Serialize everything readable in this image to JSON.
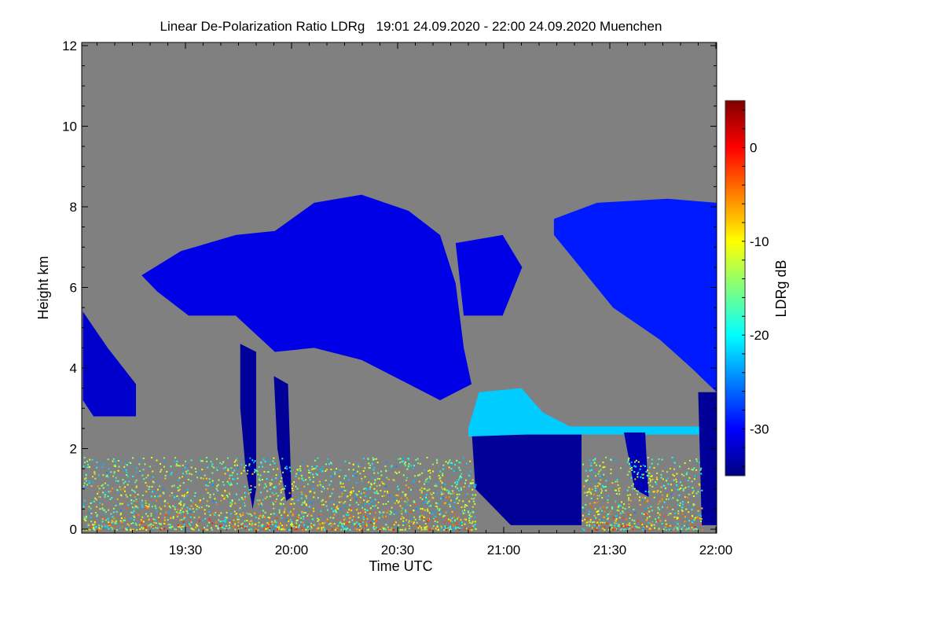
{
  "chart_data": {
    "type": "heatmap",
    "title": "Linear De-Polarization Ratio LDRg   19:01 24.09.2020 - 22:00 24.09.2020 Muenchen",
    "xlabel": "Time UTC",
    "ylabel": "Height km",
    "colorbar_label": "LDRg dB",
    "x_unit": "minutes after 19:00 UTC",
    "xlim": [
      1,
      180
    ],
    "ylim": [
      0,
      12
    ],
    "x_ticks": [
      {
        "v": 30,
        "label": "19:30"
      },
      {
        "v": 60,
        "label": "20:00"
      },
      {
        "v": 90,
        "label": "20:30"
      },
      {
        "v": 120,
        "label": "21:00"
      },
      {
        "v": 150,
        "label": "21:30"
      },
      {
        "v": 180,
        "label": "22:00"
      }
    ],
    "y_ticks": [
      {
        "v": 0,
        "label": "0"
      },
      {
        "v": 2,
        "label": "2"
      },
      {
        "v": 4,
        "label": "4"
      },
      {
        "v": 6,
        "label": "6"
      },
      {
        "v": 8,
        "label": "8"
      },
      {
        "v": 10,
        "label": "10"
      },
      {
        "v": 12,
        "label": "12"
      }
    ],
    "colorbar_range": [
      -35,
      5
    ],
    "colorbar_ticks": [
      {
        "v": 0,
        "label": "0"
      },
      {
        "v": -10,
        "label": "-10"
      },
      {
        "v": -20,
        "label": "-20"
      },
      {
        "v": -30,
        "label": "-30"
      }
    ],
    "colormap": "jet",
    "no_data_color": "#808080",
    "regions": [
      {
        "name": "upper-cloud-main",
        "ldr": -31,
        "points": [
          [
            17.6,
            6.3
          ],
          [
            28.7,
            6.9
          ],
          [
            44.2,
            7.3
          ],
          [
            55.3,
            7.4
          ],
          [
            66.4,
            8.1
          ],
          [
            79.8,
            8.3
          ],
          [
            93.1,
            7.9
          ],
          [
            102,
            7.3
          ],
          [
            106.4,
            6.1
          ],
          [
            108.7,
            4.5
          ],
          [
            110.9,
            3.6
          ],
          [
            102,
            3.2
          ],
          [
            88.7,
            3.8
          ],
          [
            79.8,
            4.2
          ],
          [
            66.4,
            4.5
          ],
          [
            55.3,
            4.4
          ],
          [
            44.2,
            5.3
          ],
          [
            30.9,
            5.3
          ],
          [
            22,
            5.9
          ]
        ]
      },
      {
        "name": "upper-cloud-right",
        "ldr": -29,
        "points": [
          [
            134.2,
            7.7
          ],
          [
            146.4,
            8.1
          ],
          [
            166.4,
            8.2
          ],
          [
            180.2,
            8.1
          ],
          [
            180.2,
            3.4
          ],
          [
            173.1,
            4.0
          ],
          [
            164.2,
            4.7
          ],
          [
            150.9,
            5.5
          ],
          [
            139.8,
            6.7
          ],
          [
            134.2,
            7.3
          ]
        ]
      },
      {
        "name": "upper-cloud-middle",
        "ldr": -31,
        "points": [
          [
            106.4,
            7.1
          ],
          [
            119.7,
            7.3
          ],
          [
            125.2,
            6.5
          ],
          [
            119.7,
            5.3
          ],
          [
            108.7,
            5.3
          ]
        ]
      },
      {
        "name": "cloud-left",
        "ldr": -32,
        "points": [
          [
            1,
            5.4
          ],
          [
            8,
            4.5
          ],
          [
            16,
            3.6
          ],
          [
            16,
            2.8
          ],
          [
            4,
            2.8
          ],
          [
            1,
            3.2
          ]
        ]
      },
      {
        "name": "low-cloud-dark",
        "ldr": -34,
        "points": [
          [
            110.9,
            2.5
          ],
          [
            142,
            2.5
          ],
          [
            142,
            0.1
          ],
          [
            122,
            0.1
          ],
          [
            112,
            1.0
          ]
        ]
      },
      {
        "name": "cyan-cloud",
        "ldr": -22,
        "points": [
          [
            110,
            2.5
          ],
          [
            113,
            3.4
          ],
          [
            125,
            3.5
          ],
          [
            131,
            2.9
          ],
          [
            142,
            2.4
          ],
          [
            110,
            2.3
          ]
        ]
      },
      {
        "name": "cyan-band",
        "ldr": -22,
        "points": [
          [
            110,
            2.55
          ],
          [
            180,
            2.55
          ],
          [
            180,
            2.35
          ],
          [
            110,
            2.35
          ]
        ]
      },
      {
        "name": "fall-streak-1",
        "ldr": -34,
        "points": [
          [
            45.5,
            4.6
          ],
          [
            50,
            4.4
          ],
          [
            50,
            1.0
          ],
          [
            49,
            0.5
          ],
          [
            47,
            1.5
          ],
          [
            45.5,
            3.0
          ]
        ]
      },
      {
        "name": "fall-streak-2",
        "ldr": -34,
        "points": [
          [
            55,
            3.8
          ],
          [
            59,
            3.6
          ],
          [
            60,
            0.8
          ],
          [
            58.5,
            0.7
          ],
          [
            56,
            2.0
          ]
        ]
      },
      {
        "name": "fall-streak-3",
        "ldr": -33,
        "points": [
          [
            154,
            2.4
          ],
          [
            160,
            2.4
          ],
          [
            161,
            0.8
          ],
          [
            157,
            1.0
          ]
        ]
      },
      {
        "name": "right-column",
        "ldr": -34,
        "points": [
          [
            175,
            3.4
          ],
          [
            180.2,
            3.4
          ],
          [
            180.2,
            0.1
          ],
          [
            176,
            0.1
          ]
        ]
      }
    ],
    "boundary_layer_noise": {
      "height_range": [
        0,
        1.8
      ],
      "ldr_range": [
        -25,
        0
      ]
    }
  }
}
